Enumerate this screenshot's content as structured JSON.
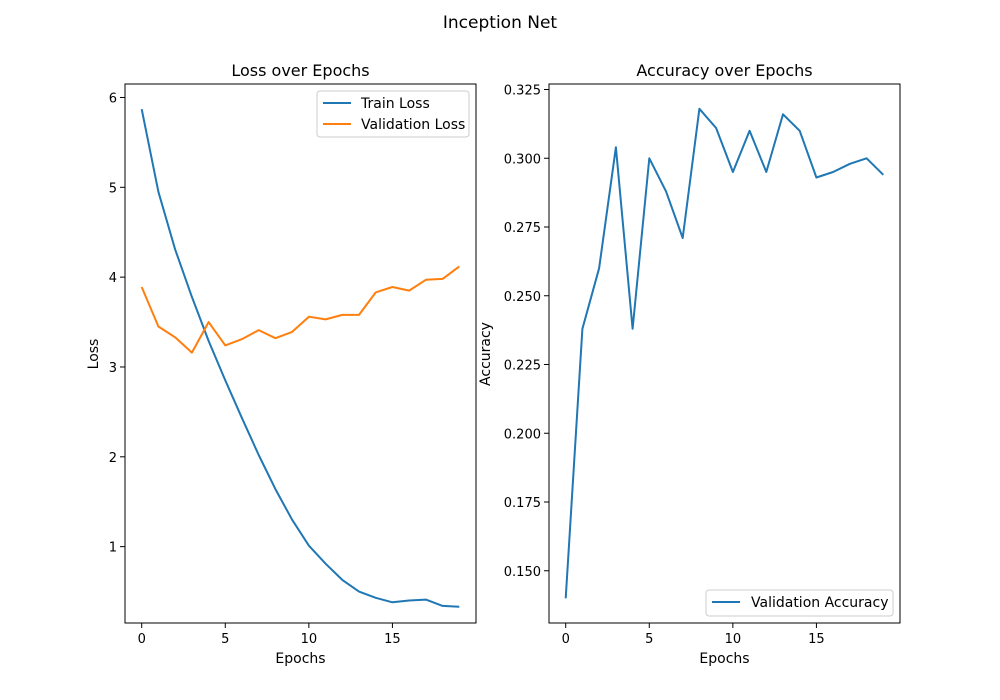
{
  "figure": {
    "title": "Inception Net"
  },
  "chart_data": [
    {
      "type": "line",
      "title": "Loss over Epochs",
      "xlabel": "Epochs",
      "ylabel": "Loss",
      "xlim": [
        -1,
        20
      ],
      "ylim": [
        0.15,
        6.15
      ],
      "xticks": [
        0,
        5,
        10,
        15
      ],
      "yticks": [
        1,
        2,
        3,
        4,
        5,
        6
      ],
      "tick_labels_x": [
        "0",
        "5",
        "10",
        "15"
      ],
      "tick_labels_y": [
        "1",
        "2",
        "3",
        "4",
        "5",
        "6"
      ],
      "grid": false,
      "legend": "top-right",
      "x": [
        0,
        1,
        2,
        3,
        4,
        5,
        6,
        7,
        8,
        9,
        10,
        11,
        12,
        13,
        14,
        15,
        16,
        17,
        18,
        19
      ],
      "series": [
        {
          "name": "Train Loss",
          "color": "#1f77b4",
          "values": [
            5.87,
            4.95,
            4.31,
            3.78,
            3.29,
            2.85,
            2.43,
            2.02,
            1.64,
            1.3,
            1.01,
            0.81,
            0.63,
            0.5,
            0.43,
            0.38,
            0.4,
            0.41,
            0.34,
            0.33
          ]
        },
        {
          "name": "Validation Loss",
          "color": "#ff7f0e",
          "values": [
            3.89,
            3.45,
            3.33,
            3.16,
            3.5,
            3.24,
            3.31,
            3.41,
            3.32,
            3.39,
            3.56,
            3.53,
            3.58,
            3.58,
            3.83,
            3.89,
            3.85,
            3.97,
            3.98,
            4.12
          ]
        }
      ]
    },
    {
      "type": "line",
      "title": "Accuracy over Epochs",
      "xlabel": "Epochs",
      "ylabel": "Accuracy",
      "xlim": [
        -1,
        20
      ],
      "ylim": [
        0.131,
        0.327
      ],
      "xticks": [
        0,
        5,
        10,
        15
      ],
      "yticks": [
        0.15,
        0.175,
        0.2,
        0.225,
        0.25,
        0.275,
        0.3,
        0.325
      ],
      "tick_labels_x": [
        "0",
        "5",
        "10",
        "15"
      ],
      "tick_labels_y": [
        "0.150",
        "0.175",
        "0.200",
        "0.225",
        "0.250",
        "0.275",
        "0.300",
        "0.325"
      ],
      "grid": false,
      "legend": "bottom-right",
      "x": [
        0,
        1,
        2,
        3,
        4,
        5,
        6,
        7,
        8,
        9,
        10,
        11,
        12,
        13,
        14,
        15,
        16,
        17,
        18,
        19
      ],
      "series": [
        {
          "name": "Validation Accuracy",
          "color": "#1f77b4",
          "values": [
            0.14,
            0.238,
            0.26,
            0.304,
            0.238,
            0.3,
            0.288,
            0.271,
            0.318,
            0.311,
            0.295,
            0.31,
            0.295,
            0.316,
            0.31,
            0.293,
            0.295,
            0.298,
            0.3,
            0.294
          ]
        }
      ]
    }
  ]
}
